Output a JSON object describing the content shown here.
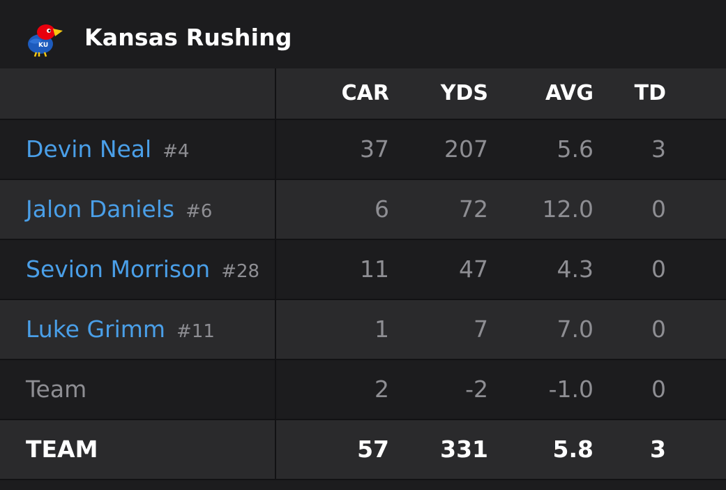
{
  "header": {
    "title": "Kansas Rushing",
    "logo_icon": "kansas-jayhawk-logo",
    "logo_text": "KU"
  },
  "columns": [
    "CAR",
    "YDS",
    "AVG",
    "TD"
  ],
  "rows": [
    {
      "name": "Devin Neal",
      "number": "#4",
      "car": "37",
      "yds": "207",
      "avg": "5.6",
      "td": "3"
    },
    {
      "name": "Jalon Daniels",
      "number": "#6",
      "car": "6",
      "yds": "72",
      "avg": "12.0",
      "td": "0"
    },
    {
      "name": "Sevion Morrison",
      "number": "#28",
      "car": "11",
      "yds": "47",
      "avg": "4.3",
      "td": "0"
    },
    {
      "name": "Luke Grimm",
      "number": "#11",
      "car": "1",
      "yds": "7",
      "avg": "7.0",
      "td": "0"
    },
    {
      "name": "Team",
      "car": "2",
      "yds": "-2",
      "avg": "-1.0",
      "td": "0"
    }
  ],
  "total": {
    "label": "TEAM",
    "car": "57",
    "yds": "331",
    "avg": "5.8",
    "td": "3"
  },
  "colors": {
    "background": "#1c1c1e",
    "row_alt": "#2a2a2c",
    "link": "#4a9fe8",
    "muted": "#8e8e93",
    "logo_blue": "#1d5bbd",
    "logo_red": "#e8000d",
    "logo_yellow": "#f6c811"
  }
}
